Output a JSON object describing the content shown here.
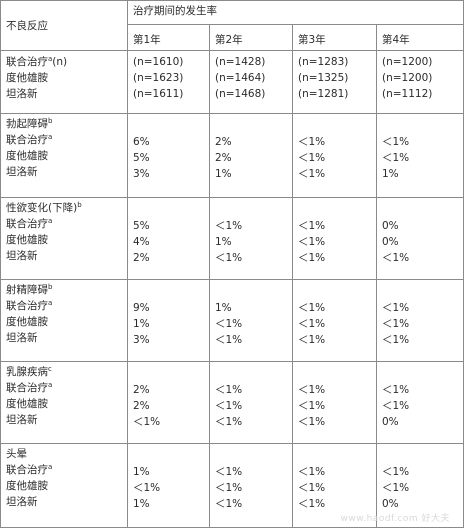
{
  "header": {
    "col0": "不良反应",
    "group": "治疗期间的发生率",
    "years": [
      "第1年",
      "第2年",
      "第3年",
      "第4年"
    ]
  },
  "sections": [
    {
      "title": "",
      "title_sup": "",
      "labels": [
        "联合治疗",
        "度他雄胺",
        "坦洛新"
      ],
      "label_sups": [
        "a",
        "",
        ""
      ],
      "label_suffix": [
        "(n)",
        "",
        ""
      ],
      "years": [
        [
          "(n=1610)",
          "(n=1623)",
          "(n=1611)"
        ],
        [
          "(n=1428)",
          "(n=1464)",
          "(n=1468)"
        ],
        [
          "(n=1283)",
          "(n=1325)",
          "(n=1281)"
        ],
        [
          "(n=1200)",
          "(n=1200)",
          "(n=1112)"
        ]
      ]
    },
    {
      "title": "勃起障碍",
      "title_sup": "b",
      "labels": [
        "联合治疗",
        "度他雄胺",
        "坦洛新"
      ],
      "label_sups": [
        "a",
        "",
        ""
      ],
      "label_suffix": [
        "",
        "",
        ""
      ],
      "years": [
        [
          "6%",
          "5%",
          "3%"
        ],
        [
          "2%",
          "2%",
          "1%"
        ],
        [
          "＜1%",
          "＜1%",
          "＜1%"
        ],
        [
          "＜1%",
          "＜1%",
          "1%"
        ]
      ]
    },
    {
      "title": "性欲变化(下降)",
      "title_sup": "b",
      "labels": [
        "联合治疗",
        "度他雄胺",
        "坦洛新"
      ],
      "label_sups": [
        "a",
        "",
        ""
      ],
      "label_suffix": [
        "",
        "",
        ""
      ],
      "years": [
        [
          "5%",
          "4%",
          "2%"
        ],
        [
          "＜1%",
          "1%",
          "＜1%"
        ],
        [
          "＜1%",
          "＜1%",
          "＜1%"
        ],
        [
          "0%",
          "0%",
          "＜1%"
        ]
      ]
    },
    {
      "title": "射精障碍",
      "title_sup": "b",
      "labels": [
        "联合治疗",
        "度他雄胺",
        "坦洛新"
      ],
      "label_sups": [
        "a",
        "",
        ""
      ],
      "label_suffix": [
        "",
        "",
        ""
      ],
      "years": [
        [
          "9%",
          "1%",
          "3%"
        ],
        [
          "1%",
          "＜1%",
          "＜1%"
        ],
        [
          "＜1%",
          "＜1%",
          "＜1%"
        ],
        [
          "＜1%",
          "＜1%",
          "＜1%"
        ]
      ]
    },
    {
      "title": "乳腺疾病",
      "title_sup": "c",
      "labels": [
        "联合治疗",
        "度他雄胺",
        "坦洛新"
      ],
      "label_sups": [
        "a",
        "",
        ""
      ],
      "label_suffix": [
        "",
        "",
        ""
      ],
      "years": [
        [
          "2%",
          "2%",
          "＜1%"
        ],
        [
          "＜1%",
          "＜1%",
          "＜1%"
        ],
        [
          "＜1%",
          "＜1%",
          "＜1%"
        ],
        [
          "＜1%",
          "＜1%",
          "0%"
        ]
      ]
    },
    {
      "title": "头晕",
      "title_sup": "",
      "labels": [
        "联合治疗",
        "度他雄胺",
        "坦洛新"
      ],
      "label_sups": [
        "a",
        "",
        ""
      ],
      "label_suffix": [
        "",
        "",
        ""
      ],
      "years": [
        [
          "1%",
          "＜1%",
          "1%"
        ],
        [
          "＜1%",
          "＜1%",
          "＜1%"
        ],
        [
          "＜1%",
          "＜1%",
          "＜1%"
        ],
        [
          "＜1%",
          "＜1%",
          "0%"
        ]
      ]
    }
  ],
  "watermark": "www.haodf.com 好大夫"
}
